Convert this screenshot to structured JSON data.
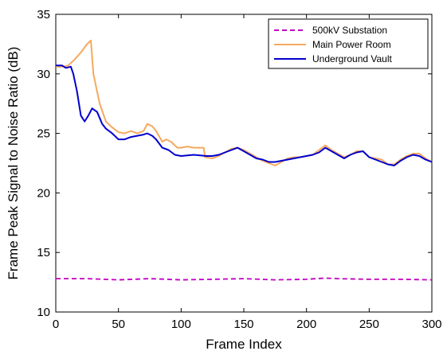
{
  "chart_data": {
    "type": "line",
    "title": "",
    "xlabel": "Frame Index",
    "ylabel": "Frame Peak Signal to Noise Ratio (dB)",
    "xlim": [
      0,
      300
    ],
    "ylim": [
      10,
      35
    ],
    "xticks": [
      0,
      50,
      100,
      150,
      200,
      250,
      300
    ],
    "yticks": [
      10,
      15,
      20,
      25,
      30,
      35
    ],
    "grid": false,
    "legend_position": "top-right",
    "series": [
      {
        "name": "500kV Substation",
        "color": "#c000c0",
        "style": "dashed",
        "x": [
          0,
          25,
          50,
          75,
          100,
          125,
          150,
          175,
          200,
          215,
          225,
          250,
          275,
          300
        ],
        "y": [
          12.8,
          12.8,
          12.7,
          12.8,
          12.7,
          12.75,
          12.8,
          12.7,
          12.75,
          12.85,
          12.8,
          12.75,
          12.75,
          12.7
        ]
      },
      {
        "name": "Main Power Room",
        "color": "#f5a95e",
        "style": "solid",
        "x": [
          0,
          5,
          10,
          15,
          20,
          25,
          28,
          30,
          35,
          40,
          45,
          50,
          55,
          60,
          65,
          70,
          73,
          77,
          80,
          85,
          88,
          92,
          97,
          100,
          105,
          110,
          118,
          119,
          125,
          130,
          135,
          140,
          145,
          150,
          155,
          160,
          165,
          170,
          175,
          180,
          185,
          190,
          195,
          200,
          205,
          210,
          215,
          220,
          225,
          230,
          235,
          240,
          245,
          250,
          255,
          260,
          265,
          270,
          275,
          280,
          285,
          290,
          295,
          300
        ],
        "y": [
          30.6,
          30.6,
          30.7,
          31.2,
          31.8,
          32.5,
          32.8,
          30.0,
          27.5,
          26.0,
          25.5,
          25.1,
          25.0,
          25.2,
          25.0,
          25.2,
          25.8,
          25.6,
          25.2,
          24.3,
          24.5,
          24.3,
          23.8,
          23.8,
          23.9,
          23.8,
          23.8,
          23.0,
          22.9,
          23.1,
          23.4,
          23.7,
          23.8,
          23.6,
          23.3,
          23.0,
          22.7,
          22.5,
          22.3,
          22.6,
          22.9,
          23.0,
          23.0,
          23.1,
          23.2,
          23.6,
          24.0,
          23.6,
          23.3,
          23.0,
          23.2,
          23.5,
          23.5,
          23.0,
          22.9,
          22.8,
          22.4,
          22.4,
          22.8,
          23.1,
          23.3,
          23.3,
          22.9,
          22.6
        ]
      },
      {
        "name": "Underground Vault",
        "color": "#0000cc",
        "style": "solid",
        "x": [
          0,
          5,
          8,
          12,
          14,
          17,
          20,
          23,
          26,
          29,
          33,
          37,
          40,
          45,
          50,
          55,
          60,
          65,
          70,
          73,
          77,
          80,
          85,
          90,
          95,
          100,
          110,
          120,
          125,
          130,
          135,
          140,
          145,
          150,
          155,
          160,
          165,
          170,
          175,
          180,
          185,
          190,
          195,
          200,
          205,
          210,
          215,
          220,
          225,
          230,
          235,
          240,
          245,
          250,
          255,
          260,
          265,
          270,
          275,
          280,
          285,
          290,
          295,
          300
        ],
        "y": [
          30.7,
          30.7,
          30.5,
          30.6,
          30.0,
          28.5,
          26.5,
          26.0,
          26.5,
          27.1,
          26.8,
          25.8,
          25.4,
          25.0,
          24.5,
          24.5,
          24.7,
          24.8,
          24.9,
          25.0,
          24.8,
          24.5,
          23.8,
          23.6,
          23.2,
          23.1,
          23.2,
          23.1,
          23.1,
          23.2,
          23.4,
          23.6,
          23.8,
          23.5,
          23.2,
          22.9,
          22.8,
          22.6,
          22.6,
          22.7,
          22.8,
          22.9,
          23.0,
          23.1,
          23.2,
          23.4,
          23.8,
          23.5,
          23.2,
          22.9,
          23.2,
          23.4,
          23.5,
          23.0,
          22.8,
          22.6,
          22.4,
          22.3,
          22.7,
          23.0,
          23.2,
          23.1,
          22.8,
          22.6
        ]
      }
    ]
  }
}
